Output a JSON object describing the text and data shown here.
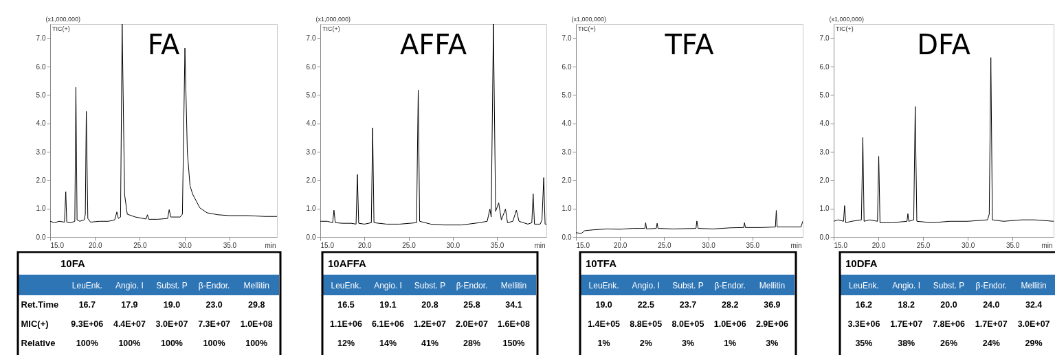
{
  "chart_data": [
    {
      "type": "line",
      "title": "FA",
      "xlabel": "min",
      "ylabel": "(x1,000,000)",
      "annotations": [
        "TIC(+)"
      ],
      "xlim": [
        15,
        40.3
      ],
      "ylim": [
        0,
        7.5
      ],
      "xticks": [
        {
          "value": 15,
          "label": "15.0"
        },
        {
          "value": 20,
          "label": "20.0"
        },
        {
          "value": 25,
          "label": "25.0"
        },
        {
          "value": 30,
          "label": "30.0"
        },
        {
          "value": 35,
          "label": "35.0"
        }
      ],
      "yticks": [
        {
          "value": 0,
          "label": "0.0"
        },
        {
          "value": 1,
          "label": "1.0"
        },
        {
          "value": 2,
          "label": "2.0"
        },
        {
          "value": 3,
          "label": "3.0"
        },
        {
          "value": 4,
          "label": "4.0"
        },
        {
          "value": 5,
          "label": "5.0"
        },
        {
          "value": 6,
          "label": "6.0"
        },
        {
          "value": 7,
          "label": "7.0"
        }
      ],
      "x": [
        15.0,
        15.5,
        16.0,
        16.6,
        16.74,
        16.85,
        17.3,
        17.75,
        17.87,
        18.0,
        18.3,
        18.8,
        18.92,
        19.03,
        19.2,
        19.5,
        20.5,
        21.5,
        22.2,
        22.44,
        22.6,
        22.85,
        23.03,
        23.3,
        23.6,
        24.5,
        25.7,
        25.85,
        26.0,
        27.0,
        28.1,
        28.28,
        28.45,
        29.5,
        29.75,
        30.03,
        30.3,
        30.6,
        30.9,
        31.7,
        32.5,
        33.7,
        35.0,
        37.0,
        39.0,
        40.3
      ],
      "series": [
        {
          "color": "#000000",
          "values": [
            0.55,
            0.5,
            0.55,
            0.52,
            1.59,
            0.52,
            0.5,
            0.55,
            5.27,
            0.6,
            0.55,
            0.6,
            0.8,
            4.42,
            0.65,
            0.52,
            0.55,
            0.55,
            0.6,
            0.88,
            0.65,
            0.7,
            7.5,
            1.5,
            0.8,
            0.7,
            0.63,
            0.78,
            0.62,
            0.62,
            0.65,
            0.96,
            0.7,
            0.7,
            0.8,
            6.65,
            3.0,
            1.8,
            1.5,
            1.02,
            0.85,
            0.78,
            0.75,
            0.75,
            0.72,
            0.72
          ]
        }
      ]
    },
    {
      "type": "line",
      "title": "AFFA",
      "xlabel": "min",
      "ylabel": "(x1,000,000)",
      "annotations": [
        "TIC(+)"
      ],
      "xlim": [
        15,
        40.6
      ],
      "ylim": [
        0,
        7.5
      ],
      "xticks": [
        {
          "value": 15,
          "label": "15.0"
        },
        {
          "value": 20,
          "label": "20.0"
        },
        {
          "value": 25,
          "label": "25.0"
        },
        {
          "value": 30,
          "label": "30.0"
        },
        {
          "value": 35,
          "label": "35.0"
        }
      ],
      "yticks": [
        {
          "value": 0,
          "label": "0.0"
        },
        {
          "value": 1,
          "label": "1.0"
        },
        {
          "value": 2,
          "label": "2.0"
        },
        {
          "value": 3,
          "label": "3.0"
        },
        {
          "value": 4,
          "label": "4.0"
        },
        {
          "value": 5,
          "label": "5.0"
        },
        {
          "value": 6,
          "label": "6.0"
        },
        {
          "value": 7,
          "label": "7.0"
        }
      ],
      "x": [
        15.0,
        15.8,
        16.4,
        16.55,
        16.7,
        17.5,
        18.5,
        19.05,
        19.2,
        19.35,
        20.0,
        20.78,
        20.93,
        21.08,
        22.5,
        24.0,
        25.9,
        26.09,
        26.25,
        27.5,
        29.0,
        31.0,
        33.0,
        33.9,
        34.2,
        34.35,
        34.6,
        34.85,
        35.2,
        35.5,
        35.97,
        36.2,
        36.8,
        37.2,
        37.5,
        38.5,
        38.95,
        39.1,
        39.25,
        39.9,
        40.1,
        40.3,
        40.45,
        40.6
      ],
      "series": [
        {
          "color": "#000000",
          "values": [
            0.55,
            0.55,
            0.5,
            0.94,
            0.5,
            0.48,
            0.48,
            0.45,
            2.2,
            0.48,
            0.45,
            0.5,
            3.84,
            0.5,
            0.45,
            0.45,
            0.5,
            5.17,
            0.55,
            0.45,
            0.42,
            0.42,
            0.5,
            0.55,
            0.98,
            0.7,
            7.5,
            0.9,
            1.2,
            0.6,
            0.98,
            0.5,
            0.55,
            0.94,
            0.55,
            0.45,
            0.5,
            1.52,
            0.45,
            0.45,
            0.6,
            2.09,
            0.45,
            0.45
          ]
        }
      ]
    },
    {
      "type": "line",
      "title": "TFA",
      "xlabel": "min",
      "ylabel": "(x1,000,000)",
      "annotations": [
        "TIC(+)"
      ],
      "xlim": [
        15,
        40.7
      ],
      "ylim": [
        0,
        7.5
      ],
      "xticks": [
        {
          "value": 15,
          "label": "15.0"
        },
        {
          "value": 20,
          "label": "20.0"
        },
        {
          "value": 25,
          "label": "25.0"
        },
        {
          "value": 30,
          "label": "30.0"
        },
        {
          "value": 35,
          "label": "35.0"
        }
      ],
      "yticks": [
        {
          "value": 0,
          "label": "0.0"
        },
        {
          "value": 1,
          "label": "1.0"
        },
        {
          "value": 2,
          "label": "2.0"
        },
        {
          "value": 3,
          "label": "3.0"
        },
        {
          "value": 4,
          "label": "4.0"
        },
        {
          "value": 5,
          "label": "5.0"
        },
        {
          "value": 6,
          "label": "6.0"
        },
        {
          "value": 7,
          "label": "7.0"
        }
      ],
      "x": [
        15.0,
        15.6,
        16.0,
        17.0,
        18.5,
        20.0,
        21.5,
        22.8,
        22.9,
        23.0,
        24.1,
        24.2,
        24.3,
        26.0,
        28.6,
        28.7,
        28.85,
        30.5,
        32.5,
        34.0,
        34.1,
        34.2,
        36.0,
        37.6,
        37.7,
        37.8,
        39.0,
        40.5,
        40.7
      ],
      "series": [
        {
          "color": "#000000",
          "values": [
            0.15,
            0.12,
            0.22,
            0.25,
            0.28,
            0.27,
            0.3,
            0.3,
            0.5,
            0.28,
            0.3,
            0.48,
            0.3,
            0.28,
            0.3,
            0.56,
            0.3,
            0.28,
            0.32,
            0.33,
            0.5,
            0.33,
            0.33,
            0.35,
            0.93,
            0.35,
            0.35,
            0.35,
            0.55
          ]
        }
      ]
    },
    {
      "type": "line",
      "title": "DFA",
      "xlabel": "min",
      "ylabel": "(x1,000,000)",
      "annotations": [
        "TIC(+)"
      ],
      "xlim": [
        15,
        39.6
      ],
      "ylim": [
        0,
        7.5
      ],
      "xticks": [
        {
          "value": 15,
          "label": "15.0"
        },
        {
          "value": 20,
          "label": "20.0"
        },
        {
          "value": 25,
          "label": "25.0"
        },
        {
          "value": 30,
          "label": "30.0"
        },
        {
          "value": 35,
          "label": "35.0"
        }
      ],
      "yticks": [
        {
          "value": 0,
          "label": "0.0"
        },
        {
          "value": 1,
          "label": "1.0"
        },
        {
          "value": 2,
          "label": "2.0"
        },
        {
          "value": 3,
          "label": "3.0"
        },
        {
          "value": 4,
          "label": "4.0"
        },
        {
          "value": 5,
          "label": "5.0"
        },
        {
          "value": 6,
          "label": "6.0"
        },
        {
          "value": 7,
          "label": "7.0"
        }
      ],
      "x": [
        15.0,
        15.5,
        16.1,
        16.22,
        16.35,
        17.0,
        18.1,
        18.26,
        18.4,
        19.0,
        19.9,
        20.04,
        20.18,
        21.5,
        23.2,
        23.3,
        23.4,
        23.95,
        24.12,
        24.3,
        26.0,
        28.0,
        30.0,
        32.2,
        32.4,
        32.58,
        32.75,
        34.0,
        36.0,
        37.5,
        39.6
      ],
      "series": [
        {
          "color": "#000000",
          "values": [
            0.55,
            0.6,
            0.55,
            1.1,
            0.5,
            0.55,
            0.6,
            3.5,
            0.55,
            0.6,
            0.55,
            2.84,
            0.5,
            0.5,
            0.55,
            0.82,
            0.55,
            0.6,
            4.59,
            0.55,
            0.5,
            0.55,
            0.55,
            0.6,
            0.8,
            6.32,
            0.6,
            0.55,
            0.6,
            0.6,
            0.55
          ]
        }
      ]
    },
    {
      "type": "other",
      "title": "10FA",
      "categories": [
        "LeuEnk.",
        "Angio. I",
        "Subst. P",
        "β-Endor.",
        "Mellitin"
      ],
      "y_categories": [
        "Ret.Time",
        "MIC(+)",
        "Relative"
      ],
      "cell_labels": [
        [
          "16.7",
          "17.9",
          "19.0",
          "23.0",
          "29.8"
        ],
        [
          "9.3E+06",
          "4.4E+07",
          "3.0E+07",
          "7.3E+07",
          "1.0E+08"
        ],
        [
          "100%",
          "100%",
          "100%",
          "100%",
          "100%"
        ]
      ]
    },
    {
      "type": "other",
      "title": "10AFFA",
      "categories": [
        "LeuEnk.",
        "Angio. I",
        "Subst. P",
        "β-Endor.",
        "Mellitin"
      ],
      "cell_labels": [
        [
          "16.5",
          "19.1",
          "20.8",
          "25.8",
          "34.1"
        ],
        [
          "1.1E+06",
          "6.1E+06",
          "1.2E+07",
          "2.0E+07",
          "1.6E+08"
        ],
        [
          "12%",
          "14%",
          "41%",
          "28%",
          "150%"
        ]
      ]
    },
    {
      "type": "other",
      "title": "10TFA",
      "categories": [
        "LeuEnk.",
        "Angio. I",
        "Subst. P",
        "β-Endor.",
        "Mellitin"
      ],
      "cell_labels": [
        [
          "19.0",
          "22.5",
          "23.7",
          "28.2",
          "36.9"
        ],
        [
          "1.4E+05",
          "8.8E+05",
          "8.0E+05",
          "1.0E+06",
          "2.9E+06"
        ],
        [
          "1%",
          "2%",
          "3%",
          "1%",
          "3%"
        ]
      ]
    },
    {
      "type": "other",
      "title": "10DFA",
      "categories": [
        "LeuEnk.",
        "Angio. I",
        "Subst. P",
        "β-Endor.",
        "Mellitin"
      ],
      "cell_labels": [
        [
          "16.2",
          "18.2",
          "20.0",
          "24.0",
          "32.4"
        ],
        [
          "3.3E+06",
          "1.7E+07",
          "7.8E+06",
          "1.7E+07",
          "3.0E+07"
        ],
        [
          "35%",
          "38%",
          "26%",
          "24%",
          "29%"
        ]
      ]
    }
  ]
}
